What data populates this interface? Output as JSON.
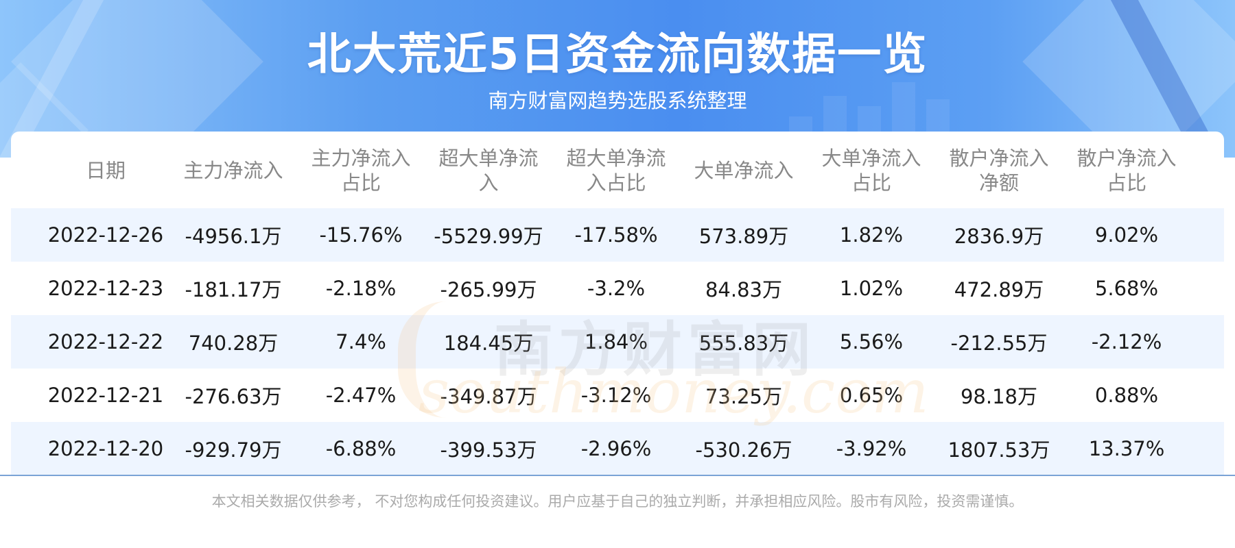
{
  "header": {
    "title": "北大荒近5日资金流向数据一览",
    "subtitle": "南方财富网趋势选股系统整理"
  },
  "table": {
    "columns": [
      [
        "日期"
      ],
      [
        "主力净流入"
      ],
      [
        "主力净流入",
        "占比"
      ],
      [
        "超大单净流",
        "入"
      ],
      [
        "超大单净流",
        "入占比"
      ],
      [
        "大单净流入"
      ],
      [
        "大单净流入",
        "占比"
      ],
      [
        "散户净流入",
        "净额"
      ],
      [
        "散户净流入",
        "占比"
      ]
    ],
    "rows": [
      [
        "2022-12-26",
        "-4956.1万",
        "-15.76%",
        "-5529.99万",
        "-17.58%",
        "573.89万",
        "1.82%",
        "2836.9万",
        "9.02%"
      ],
      [
        "2022-12-23",
        "-181.17万",
        "-2.18%",
        "-265.99万",
        "-3.2%",
        "84.83万",
        "1.02%",
        "472.89万",
        "5.68%"
      ],
      [
        "2022-12-22",
        "740.28万",
        "7.4%",
        "184.45万",
        "1.84%",
        "555.83万",
        "5.56%",
        "-212.55万",
        "-2.12%"
      ],
      [
        "2022-12-21",
        "-276.63万",
        "-2.47%",
        "-349.87万",
        "-3.12%",
        "73.25万",
        "0.65%",
        "98.18万",
        "0.88%"
      ],
      [
        "2022-12-20",
        "-929.79万",
        "-6.88%",
        "-399.53万",
        "-2.96%",
        "-530.26万",
        "-3.92%",
        "1807.53万",
        "13.37%"
      ]
    ]
  },
  "watermark": {
    "cn": "南方财富网",
    "en": "southmoney.com"
  },
  "footer": {
    "disclaimer": "本文相关数据仅供参考， 不对您构成任何投资建议。用户应基于自己的独立判断，并承担相应风险。股市有风险，投资需谨慎。"
  },
  "colors": {
    "banner": "#4a8ef0",
    "row_alt": "#eef5ff",
    "header_text": "#888888",
    "body_text": "#1a1a1a"
  }
}
